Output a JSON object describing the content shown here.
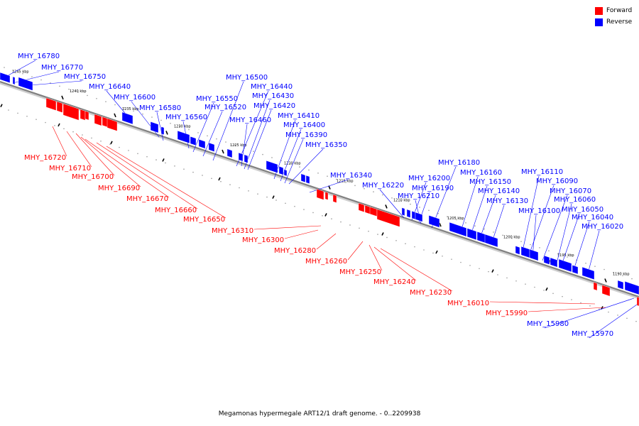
{
  "colors": {
    "forward": "#ff0000",
    "reverse": "#0000ff",
    "backbone": "#808080",
    "tick": "#000000"
  },
  "legend": {
    "forward_label": "Forward",
    "reverse_label": "Reverse"
  },
  "caption": "Megamonas hypermegale ART12/1 draft genome. - 0..2209938",
  "track": {
    "ticks": [
      "1245 kbp",
      "1240 kbp",
      "1235 kbp",
      "1230 kbp",
      "1225 kbp",
      "1220 kbp",
      "1215 kbp",
      "1210 kbp",
      "1205 kbp",
      "1200 kbp",
      "1195 kbp",
      "1190 kbp"
    ]
  },
  "features": {
    "reverse": [
      "MHY_16780",
      "MHY_16770",
      "MHY_16750",
      "MHY_16640",
      "MHY_16600",
      "MHY_16580",
      "MHY_16560",
      "MHY_16550",
      "MHY_16520",
      "MHY_16500",
      "MHY_16440",
      "MHY_16430",
      "MHY_16420",
      "MHY_16460",
      "MHY_16410",
      "MHY_16400",
      "MHY_16390",
      "MHY_16350",
      "MHY_16340",
      "MHY_16220",
      "MHY_16200",
      "MHY_16190",
      "MHY_16210",
      "MHY_16180",
      "MHY_16160",
      "MHY_16150",
      "MHY_16140",
      "MHY_16130",
      "MHY_16110",
      "MHY_16090",
      "MHY_16070",
      "MHY_16100",
      "MHY_16060",
      "MHY_16050",
      "MHY_16040",
      "MHY_16020",
      "MHY_15980",
      "MHY_15970"
    ],
    "forward": [
      "MHY_16720",
      "MHY_16710",
      "MHY_16700",
      "MHY_16690",
      "MHY_16670",
      "MHY_16660",
      "MHY_16650",
      "MHY_16310",
      "MHY_16300",
      "MHY_16280",
      "MHY_16260",
      "MHY_16250",
      "MHY_16240",
      "MHY_16230",
      "MHY_16010",
      "MHY_15990"
    ]
  }
}
